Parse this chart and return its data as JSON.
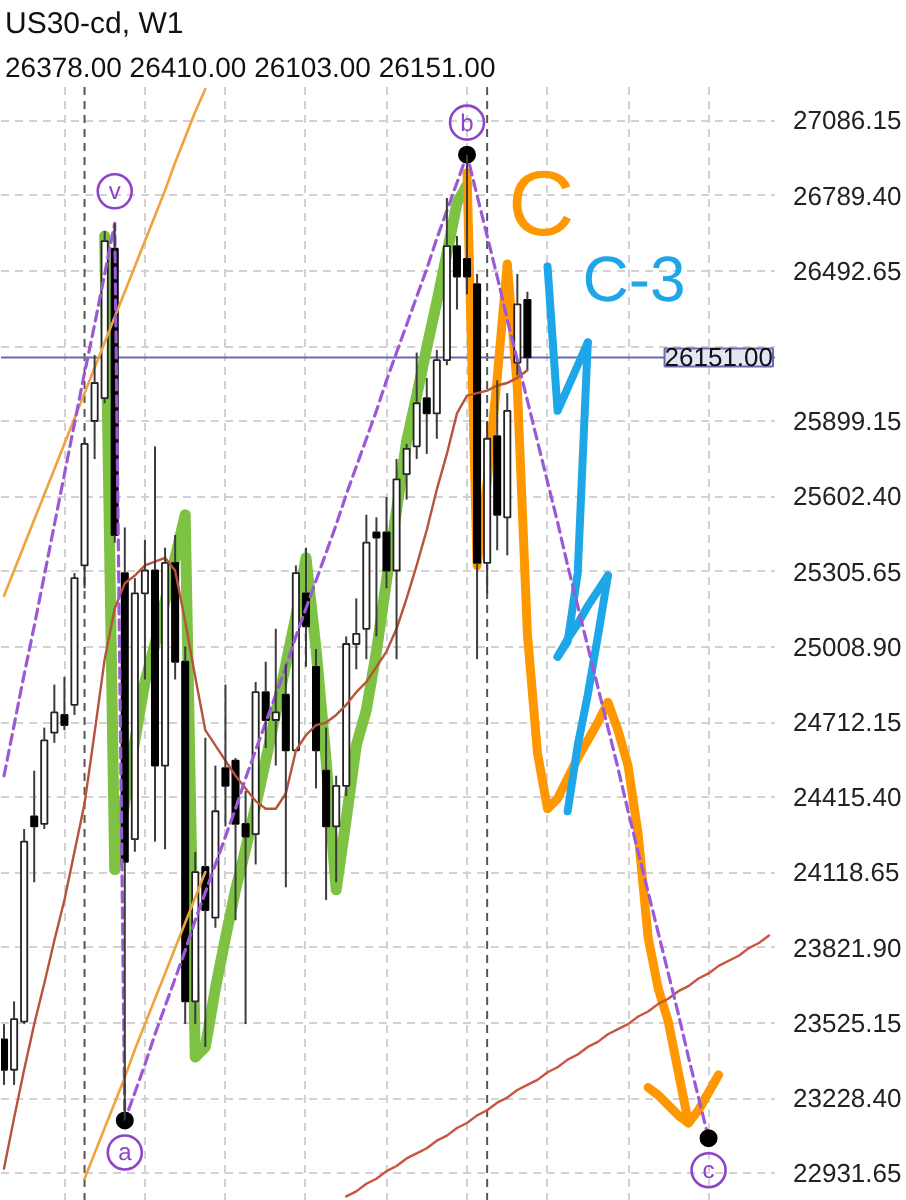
{
  "chart_data": {
    "type": "candlestick",
    "title": "US30-cd, W1",
    "subtitle": "26378.00 26410.00 26103.00 26151.00",
    "categories": [
      null,
      null,
      null,
      null,
      null,
      null,
      null,
      null,
      null,
      null,
      null,
      null,
      null,
      null,
      null,
      null,
      null,
      null,
      null,
      null,
      null,
      null,
      null,
      null,
      null,
      null,
      null,
      null,
      null,
      null,
      null,
      null,
      null,
      null,
      null,
      null,
      null,
      null,
      null,
      null,
      null,
      null,
      null,
      null,
      null,
      null,
      null,
      null,
      null,
      null,
      null,
      null,
      null,
      null,
      null,
      null,
      null,
      null,
      null,
      null,
      null,
      null,
      null,
      null,
      null,
      null,
      null,
      null,
      null,
      null,
      null,
      null,
      null,
      null,
      null,
      null,
      null
    ],
    "ohlc": [
      [
        23460,
        23520,
        23280,
        23340
      ],
      [
        23340,
        23610,
        23280,
        23540
      ],
      [
        23530,
        24290,
        23520,
        24240
      ],
      [
        24340,
        24520,
        24080,
        24300
      ],
      [
        24310,
        24690,
        24290,
        24640
      ],
      [
        24670,
        24860,
        24630,
        24750
      ],
      [
        24740,
        24890,
        24680,
        24700
      ],
      [
        24780,
        25300,
        24740,
        25280
      ],
      [
        25330,
        25830,
        25240,
        25810
      ],
      [
        25900,
        26160,
        25750,
        26050
      ],
      [
        25990,
        26650,
        25970,
        26610
      ],
      [
        26580,
        26680,
        25420,
        25450
      ],
      [
        25300,
        25480,
        23140,
        24160
      ],
      [
        24250,
        25280,
        24200,
        25220
      ],
      [
        25220,
        25430,
        24880,
        25310
      ],
      [
        25310,
        25800,
        24240,
        24540
      ],
      [
        24540,
        25400,
        24210,
        25340
      ],
      [
        25340,
        25450,
        24880,
        24950
      ],
      [
        24950,
        25010,
        23520,
        23610
      ],
      [
        23610,
        24200,
        23520,
        24120
      ],
      [
        24140,
        24650,
        23430,
        23970
      ],
      [
        23940,
        24540,
        23900,
        24360
      ],
      [
        24530,
        24860,
        24300,
        24460
      ],
      [
        24560,
        24570,
        23930,
        24310
      ],
      [
        24310,
        24440,
        23520,
        24260
      ],
      [
        24270,
        24870,
        24150,
        24830
      ],
      [
        24830,
        24950,
        24610,
        24720
      ],
      [
        24720,
        25080,
        24540,
        24750
      ],
      [
        24820,
        24940,
        24060,
        24600
      ],
      [
        24600,
        25330,
        24600,
        25300
      ],
      [
        25220,
        25400,
        24930,
        25090
      ],
      [
        24930,
        25000,
        24450,
        24600
      ],
      [
        24520,
        24690,
        24010,
        24300
      ],
      [
        24300,
        24500,
        24080,
        24460
      ],
      [
        24460,
        25050,
        24420,
        25020
      ],
      [
        25020,
        25200,
        24920,
        25060
      ],
      [
        25080,
        25530,
        24960,
        25420
      ],
      [
        25460,
        25520,
        25050,
        25440
      ],
      [
        25460,
        25600,
        25240,
        25310
      ],
      [
        25310,
        25750,
        24960,
        25670
      ],
      [
        25690,
        25810,
        25590,
        25790
      ],
      [
        25800,
        26170,
        25750,
        25970
      ],
      [
        25990,
        26070,
        25770,
        25930
      ],
      [
        25930,
        26180,
        25830,
        26140
      ],
      [
        26140,
        26780,
        26120,
        26590
      ],
      [
        26590,
        26630,
        26340,
        26470
      ],
      [
        26540,
        26951,
        26400,
        26470
      ],
      [
        26440,
        26480,
        24960,
        25340
      ],
      [
        25340,
        25900,
        25220,
        25830
      ],
      [
        25840,
        26060,
        25390,
        25530
      ],
      [
        25520,
        26010,
        25370,
        25940
      ],
      [
        26130,
        26480,
        26080,
        26360
      ],
      [
        26378,
        26410,
        26103,
        26151
      ],
      null,
      null,
      null,
      null,
      null,
      null,
      null,
      null,
      null,
      null,
      null,
      null,
      null,
      null,
      null,
      null,
      null,
      null,
      null,
      null,
      null,
      null,
      null,
      null
    ],
    "series": [
      {
        "type": "line",
        "color": "#b5533c",
        "values": [
          22950,
          23150,
          23340,
          23520,
          23680,
          23850,
          24010,
          24200,
          24390,
          24670,
          24960,
          25160,
          25260,
          25290,
          25330,
          25345,
          25360,
          25310,
          25110,
          24890,
          24680,
          24620,
          24560,
          24500,
          24450,
          24400,
          24370,
          24370,
          24430,
          24600,
          24660,
          24700,
          24710,
          24740,
          24780,
          24830,
          24870,
          24930,
          24990,
          25080,
          25200,
          25330,
          25470,
          25630,
          25770,
          25930,
          26000,
          26010,
          26020,
          26040,
          26050,
          26070,
          26100,
          null,
          null,
          null,
          null,
          null,
          null,
          null,
          null,
          null,
          null,
          null,
          null,
          null,
          null,
          null,
          null,
          null,
          null,
          null,
          null,
          null,
          null,
          null,
          null
        ]
      },
      {
        "type": "line",
        "color": "#f0a23c",
        "values": [
          25210,
          25310,
          25410,
          25510,
          25610,
          25710,
          25810,
          25910,
          26010,
          26110,
          26210,
          26310,
          26410,
          26510,
          26610,
          26710,
          26810,
          26920,
          27020,
          27120,
          27210,
          null,
          null,
          null,
          null,
          null,
          null,
          null,
          null,
          null,
          null,
          null,
          null,
          null,
          null,
          null,
          null,
          null,
          null,
          null,
          null,
          null,
          null,
          null,
          null,
          null,
          null,
          null,
          null,
          null,
          null,
          null,
          null,
          null,
          null,
          null,
          null,
          null,
          null,
          null,
          null,
          null,
          null,
          null,
          null,
          null,
          null,
          null,
          null,
          null,
          null,
          null,
          null,
          null,
          null,
          null,
          null
        ]
      },
      {
        "type": "line",
        "color": "#f0a23c",
        "values": [
          null,
          null,
          null,
          null,
          null,
          null,
          null,
          null,
          22910,
          23010,
          23110,
          23210,
          23310,
          23420,
          23520,
          23620,
          23720,
          23820,
          23920,
          24020,
          24120,
          null,
          null,
          null,
          null,
          null,
          null,
          null,
          null,
          null,
          null,
          null,
          null,
          null,
          null,
          null,
          null,
          null,
          null,
          null,
          null,
          null,
          null,
          null,
          null,
          null,
          null,
          null,
          null,
          null,
          null,
          null,
          null,
          null,
          null,
          null,
          null,
          null,
          null,
          null,
          null,
          null,
          null,
          null,
          null,
          null,
          null,
          null,
          null,
          null,
          null,
          null,
          null,
          null,
          null,
          null,
          null
        ]
      },
      {
        "type": "line",
        "color": "#c8553d",
        "values": [
          null,
          null,
          null,
          null,
          null,
          null,
          null,
          null,
          null,
          null,
          null,
          null,
          null,
          null,
          null,
          null,
          null,
          null,
          null,
          null,
          null,
          null,
          null,
          null,
          null,
          null,
          null,
          null,
          null,
          null,
          null,
          null,
          null,
          null,
          22840,
          22860,
          22890,
          22910,
          22940,
          22960,
          22990,
          23010,
          23030,
          23060,
          23080,
          23110,
          23130,
          23160,
          23180,
          23210,
          23230,
          23260,
          23280,
          23300,
          23330,
          23350,
          23380,
          23400,
          23430,
          23450,
          23480,
          23500,
          23520,
          23550,
          23570,
          23600,
          23620,
          23650,
          23670,
          23700,
          23720,
          23750,
          23770,
          23790,
          23820,
          23840,
          23870
        ]
      },
      {
        "type": "line",
        "color": "#9a5ad6",
        "line_style": "dashed",
        "values": [
          24500,
          24700,
          24900,
          25090,
          25290,
          25490,
          25690,
          25890,
          26090,
          26280,
          26480,
          26680,
          23140,
          23250,
          23360,
          23480,
          23590,
          23700,
          23810,
          23930,
          24040,
          24150,
          24260,
          24370,
          24490,
          24600,
          24710,
          24820,
          24930,
          25050,
          25160,
          25270,
          25380,
          25490,
          25610,
          25720,
          25830,
          25940,
          26060,
          26170,
          26280,
          26390,
          26500,
          26620,
          26730,
          26840,
          26951,
          26790,
          26630,
          26470,
          26300,
          26140,
          25980,
          25820,
          25660,
          25500,
          25330,
          25170,
          25010,
          24850,
          24690,
          24530,
          24360,
          24200,
          24040,
          23880,
          23720,
          23560,
          23390,
          23230,
          23070,
          null,
          null,
          null,
          null,
          null,
          null
        ]
      },
      {
        "type": "scatter",
        "color": "#000000",
        "marker": "circle",
        "values": [
          null,
          null,
          null,
          null,
          null,
          null,
          null,
          null,
          null,
          null,
          null,
          null,
          23140,
          null,
          null,
          null,
          null,
          null,
          null,
          null,
          null,
          null,
          null,
          null,
          null,
          null,
          null,
          null,
          null,
          null,
          null,
          null,
          null,
          null,
          null,
          null,
          null,
          null,
          null,
          null,
          null,
          null,
          null,
          null,
          null,
          null,
          26951,
          null,
          null,
          null,
          null,
          null,
          null,
          null,
          null,
          null,
          null,
          null,
          null,
          null,
          null,
          null,
          null,
          null,
          null,
          null,
          null,
          null,
          null,
          null,
          23070,
          null,
          null,
          null,
          null,
          null,
          null
        ]
      },
      {
        "type": "line",
        "color": "#7dc242",
        "values": [
          null,
          null,
          null,
          null,
          null,
          null,
          null,
          null,
          null,
          null,
          26630,
          24130,
          24400,
          24640,
          24870,
          25020,
          25190,
          25360,
          25530,
          23390,
          23430,
          23660,
          23860,
          24050,
          24210,
          24380,
          24560,
          24750,
          24940,
          25130,
          25360,
          25000,
          24560,
          24050,
          24330,
          24620,
          24760,
          24990,
          25270,
          25550,
          25820,
          26000,
          26190,
          26370,
          26560,
          26760,
          26830,
          null,
          null,
          null,
          null,
          null,
          null,
          null,
          null,
          null,
          null,
          null,
          null,
          null,
          null,
          null,
          null,
          null,
          null,
          null,
          null,
          null,
          null,
          null,
          null,
          null,
          null,
          null,
          null,
          null,
          null
        ]
      },
      {
        "type": "line",
        "color": "#ff9800",
        "values": [
          null,
          null,
          null,
          null,
          null,
          null,
          null,
          null,
          null,
          null,
          null,
          null,
          null,
          null,
          null,
          null,
          null,
          null,
          null,
          null,
          null,
          null,
          null,
          null,
          null,
          null,
          null,
          null,
          null,
          null,
          null,
          null,
          null,
          null,
          null,
          null,
          null,
          null,
          null,
          null,
          null,
          null,
          null,
          null,
          null,
          null,
          26880,
          25330,
          25660,
          26070,
          26520,
          26030,
          25060,
          24590,
          24370,
          24410,
          24490,
          24570,
          24640,
          24710,
          24790,
          24680,
          24540,
          24270,
          23860,
          23660,
          23530,
          23330,
          23130,
          23180,
          23250,
          23320,
          null,
          null,
          null,
          null,
          null
        ]
      },
      {
        "type": "line",
        "color": "#ff9800",
        "values": [
          null,
          null,
          null,
          null,
          null,
          null,
          null,
          null,
          null,
          null,
          null,
          null,
          null,
          null,
          null,
          null,
          null,
          null,
          null,
          null,
          null,
          null,
          null,
          null,
          null,
          null,
          null,
          null,
          null,
          null,
          null,
          null,
          null,
          null,
          null,
          null,
          null,
          null,
          null,
          null,
          null,
          null,
          null,
          null,
          null,
          null,
          null,
          null,
          null,
          null,
          null,
          null,
          null,
          null,
          null,
          null,
          null,
          null,
          null,
          null,
          null,
          null,
          null,
          null,
          23270,
          23240,
          23200,
          23160,
          23130,
          null,
          null,
          null,
          null,
          null,
          null,
          null,
          null
        ]
      },
      {
        "type": "line",
        "color": "#1ea7e8",
        "values": [
          null,
          null,
          null,
          null,
          null,
          null,
          null,
          null,
          null,
          null,
          null,
          null,
          null,
          null,
          null,
          null,
          null,
          null,
          null,
          null,
          null,
          null,
          null,
          null,
          null,
          null,
          null,
          null,
          null,
          null,
          null,
          null,
          null,
          null,
          null,
          null,
          null,
          null,
          null,
          null,
          null,
          null,
          null,
          null,
          null,
          null,
          null,
          null,
          null,
          null,
          null,
          null,
          null,
          null,
          26510,
          25940,
          26030,
          26120,
          26210,
          null,
          null,
          null,
          null,
          null,
          null,
          null,
          null,
          null,
          null,
          null,
          null,
          null,
          null,
          null,
          null,
          null,
          null
        ]
      },
      {
        "type": "line",
        "color": "#1ea7e8",
        "values": [
          null,
          null,
          null,
          null,
          null,
          null,
          null,
          null,
          null,
          null,
          null,
          null,
          null,
          null,
          null,
          null,
          null,
          null,
          null,
          null,
          null,
          null,
          null,
          null,
          null,
          null,
          null,
          null,
          null,
          null,
          null,
          null,
          null,
          null,
          null,
          null,
          null,
          null,
          null,
          null,
          null,
          null,
          null,
          null,
          null,
          null,
          null,
          null,
          null,
          null,
          null,
          null,
          null,
          null,
          null,
          24970,
          25030,
          25300,
          26210,
          null,
          null,
          null,
          null,
          null,
          null,
          null,
          null,
          null,
          null,
          null,
          null,
          null,
          null,
          null,
          null,
          null,
          null
        ]
      },
      {
        "type": "line",
        "color": "#1ea7e8",
        "values": [
          null,
          null,
          null,
          null,
          null,
          null,
          null,
          null,
          null,
          null,
          null,
          null,
          null,
          null,
          null,
          null,
          null,
          null,
          null,
          null,
          null,
          null,
          null,
          null,
          null,
          null,
          null,
          null,
          null,
          null,
          null,
          null,
          null,
          null,
          null,
          null,
          null,
          null,
          null,
          null,
          null,
          null,
          null,
          null,
          null,
          null,
          null,
          null,
          null,
          null,
          null,
          null,
          null,
          null,
          null,
          24970,
          25040,
          25100,
          25170,
          25230,
          25290,
          null,
          null,
          null,
          null,
          null,
          null,
          null,
          null,
          null,
          null,
          null,
          null,
          null,
          null,
          null,
          null
        ]
      },
      {
        "type": "line",
        "color": "#1ea7e8",
        "values": [
          null,
          null,
          null,
          null,
          null,
          null,
          null,
          null,
          null,
          null,
          null,
          null,
          null,
          null,
          null,
          null,
          null,
          null,
          null,
          null,
          null,
          null,
          null,
          null,
          null,
          null,
          null,
          null,
          null,
          null,
          null,
          null,
          null,
          null,
          null,
          null,
          null,
          null,
          null,
          null,
          null,
          null,
          null,
          null,
          null,
          null,
          null,
          null,
          null,
          null,
          null,
          null,
          null,
          null,
          null,
          null,
          24360,
          24620,
          24820,
          25050,
          25290,
          null,
          null,
          null,
          null,
          null,
          null,
          null,
          null,
          null,
          null,
          null,
          null,
          null,
          null,
          null,
          null
        ]
      }
    ],
    "ylim": [
      22822,
      27218
    ],
    "yticks": [
      {
        "value": 27086.15,
        "label": "27086.15"
      },
      {
        "value": 26789.4,
        "label": "26789.40"
      },
      {
        "value": 26492.65,
        "label": "26492.65"
      },
      {
        "value": 26195.9,
        "label": null
      },
      {
        "value": 25899.15,
        "label": "25899.15"
      },
      {
        "value": 25602.4,
        "label": "25602.40"
      },
      {
        "value": 25305.65,
        "label": "25305.65"
      },
      {
        "value": 25008.9,
        "label": "25008.90"
      },
      {
        "value": 24712.15,
        "label": "24712.15"
      },
      {
        "value": 24415.4,
        "label": "24415.40"
      },
      {
        "value": 24118.65,
        "label": "24118.65"
      },
      {
        "value": 23821.9,
        "label": "23821.90"
      },
      {
        "value": 23525.15,
        "label": "23525.15"
      },
      {
        "value": 23228.4,
        "label": "23228.40"
      },
      {
        "value": 22931.65,
        "label": "22931.65"
      }
    ],
    "tick_labels": "y",
    "grid": true,
    "ref_lines": [
      {
        "axis": "y",
        "value": 26151,
        "label": "26151.00",
        "color": "#6a6aae"
      }
    ],
    "annotations": [
      {
        "text": "v",
        "y": 26680
      },
      {
        "text": "a",
        "y": 23140
      },
      {
        "text": "b",
        "y": 26951
      },
      {
        "text": "c",
        "y": 23070
      },
      "C",
      "C-3"
    ]
  }
}
